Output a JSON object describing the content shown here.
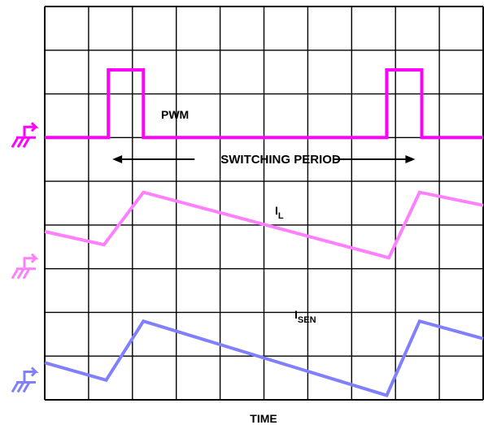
{
  "chart_data": {
    "type": "line",
    "xlabel": "TIME",
    "grid": true,
    "grid_divisions": {
      "x": 10,
      "y": 9
    },
    "annotation": "SWITCHING PERIOD",
    "series": [
      {
        "name": "PWM",
        "color": "#ff00ff",
        "ground_marker_div": 3.0,
        "points": [
          [
            0,
            0
          ],
          [
            1.45,
            0
          ],
          [
            1.45,
            1.55
          ],
          [
            2.25,
            1.55
          ],
          [
            2.25,
            0
          ],
          [
            7.8,
            0
          ],
          [
            7.8,
            1.55
          ],
          [
            8.6,
            1.55
          ],
          [
            8.6,
            0
          ],
          [
            10,
            0
          ]
        ]
      },
      {
        "name": "I",
        "subscript": "L",
        "color": "#ff80ff",
        "ground_marker_div": 6.0,
        "points": [
          [
            0,
            0.85
          ],
          [
            1.35,
            0.55
          ],
          [
            2.25,
            1.75
          ],
          [
            7.85,
            0.25
          ],
          [
            8.55,
            1.75
          ],
          [
            10,
            1.45
          ]
        ]
      },
      {
        "name": "I",
        "subscript": "SEN",
        "color": "#8080ff",
        "ground_marker_div": 8.6,
        "points": [
          [
            0,
            0.45
          ],
          [
            1.4,
            0.05
          ],
          [
            2.25,
            1.4
          ],
          [
            7.8,
            -0.3
          ],
          [
            8.55,
            1.4
          ],
          [
            10,
            1.0
          ]
        ]
      }
    ]
  }
}
